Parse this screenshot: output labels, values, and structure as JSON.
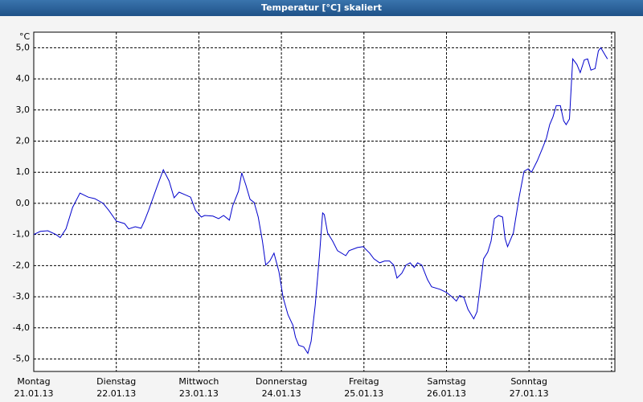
{
  "chart_data": {
    "type": "line",
    "title": "Temperatur [°C] skaliert",
    "y_unit": "°C",
    "xlim": [
      0,
      7.04
    ],
    "ylim": [
      -5.4,
      5.5
    ],
    "xticks": [
      {
        "value": 0,
        "label": "Montag",
        "date": "21.01.13"
      },
      {
        "value": 1,
        "label": "Dienstag",
        "date": "22.01.13"
      },
      {
        "value": 2,
        "label": "Mittwoch",
        "date": "23.01.13"
      },
      {
        "value": 3,
        "label": "Donnerstag",
        "date": "24.01.13"
      },
      {
        "value": 4,
        "label": "Freitag",
        "date": "25.01.13"
      },
      {
        "value": 5,
        "label": "Samstag",
        "date": "26.01.13"
      },
      {
        "value": 6,
        "label": "Sonntag",
        "date": "27.01.13"
      },
      {
        "value": 7,
        "label": ""
      }
    ],
    "yticks": [
      {
        "value": -5,
        "label": "-5,0"
      },
      {
        "value": -4,
        "label": "-4,0"
      },
      {
        "value": -3,
        "label": "-3,0"
      },
      {
        "value": -2,
        "label": "-2,0"
      },
      {
        "value": -1,
        "label": "-1,0"
      },
      {
        "value": 0,
        "label": "0,0"
      },
      {
        "value": 1,
        "label": "1,0"
      },
      {
        "value": 2,
        "label": "2,0"
      },
      {
        "value": 3,
        "label": "3,0"
      },
      {
        "value": 4,
        "label": "4,0"
      },
      {
        "value": 5,
        "label": "5,0"
      }
    ],
    "grid": true,
    "series": [
      {
        "name": "Temperatur",
        "color": "#0000cc",
        "x": [
          0,
          0.08,
          0.17,
          0.27,
          0.32,
          0.39,
          0.47,
          0.56,
          0.66,
          0.74,
          0.84,
          0.91,
          1.0,
          1.1,
          1.15,
          1.23,
          1.3,
          1.34,
          1.39,
          1.49,
          1.57,
          1.64,
          1.7,
          1.76,
          1.83,
          1.9,
          1.96,
          2.03,
          2.07,
          2.17,
          2.24,
          2.3,
          2.37,
          2.41,
          2.48,
          2.52,
          2.57,
          2.62,
          2.67,
          2.72,
          2.77,
          2.81,
          2.86,
          2.91,
          2.97,
          3.02,
          3.08,
          3.14,
          3.17,
          3.21,
          3.27,
          3.32,
          3.36,
          3.41,
          3.46,
          3.5,
          3.52,
          3.56,
          3.62,
          3.68,
          3.78,
          3.82,
          3.92,
          3.99,
          4.07,
          4.12,
          4.19,
          4.25,
          4.31,
          4.36,
          4.4,
          4.46,
          4.51,
          4.56,
          4.61,
          4.65,
          4.7,
          4.77,
          4.82,
          4.92,
          5.0,
          5.06,
          5.12,
          5.16,
          5.21,
          5.26,
          5.33,
          5.37,
          5.41,
          5.45,
          5.5,
          5.54,
          5.58,
          5.63,
          5.68,
          5.71,
          5.74,
          5.81,
          5.88,
          5.94,
          5.99,
          6.03,
          6.1,
          6.16,
          6.21,
          6.25,
          6.29,
          6.33,
          6.38,
          6.42,
          6.45,
          6.49,
          6.53,
          6.58,
          6.62,
          6.67,
          6.71,
          6.75,
          6.8,
          6.84,
          6.87,
          6.92,
          6.95
        ],
        "values": [
          -1.0,
          -0.9,
          -0.88,
          -1.0,
          -1.1,
          -0.82,
          -0.13,
          0.33,
          0.2,
          0.15,
          0.0,
          -0.23,
          -0.57,
          -0.65,
          -0.82,
          -0.75,
          -0.8,
          -0.57,
          -0.23,
          0.51,
          1.08,
          0.72,
          0.18,
          0.36,
          0.28,
          0.2,
          -0.23,
          -0.44,
          -0.39,
          -0.41,
          -0.49,
          -0.39,
          -0.54,
          -0.08,
          0.39,
          0.98,
          0.59,
          0.13,
          0.03,
          -0.44,
          -1.21,
          -1.98,
          -1.85,
          -1.6,
          -2.19,
          -3.02,
          -3.58,
          -3.92,
          -4.3,
          -4.56,
          -4.61,
          -4.82,
          -4.43,
          -3.27,
          -1.73,
          -0.31,
          -0.36,
          -0.95,
          -1.21,
          -1.52,
          -1.68,
          -1.52,
          -1.42,
          -1.39,
          -1.6,
          -1.78,
          -1.91,
          -1.85,
          -1.85,
          -1.98,
          -2.4,
          -2.24,
          -1.98,
          -1.91,
          -2.06,
          -1.91,
          -1.98,
          -2.45,
          -2.68,
          -2.76,
          -2.86,
          -2.99,
          -3.14,
          -2.96,
          -3.02,
          -3.4,
          -3.71,
          -3.48,
          -2.63,
          -1.78,
          -1.57,
          -1.21,
          -0.49,
          -0.39,
          -0.44,
          -1.13,
          -1.39,
          -0.95,
          0.2,
          1.03,
          1.11,
          1.0,
          1.37,
          1.75,
          2.09,
          2.53,
          2.78,
          3.14,
          3.14,
          2.65,
          2.53,
          2.71,
          4.64,
          4.46,
          4.2,
          4.61,
          4.64,
          4.28,
          4.33,
          4.9,
          5.0,
          4.77,
          4.64
        ]
      }
    ]
  }
}
